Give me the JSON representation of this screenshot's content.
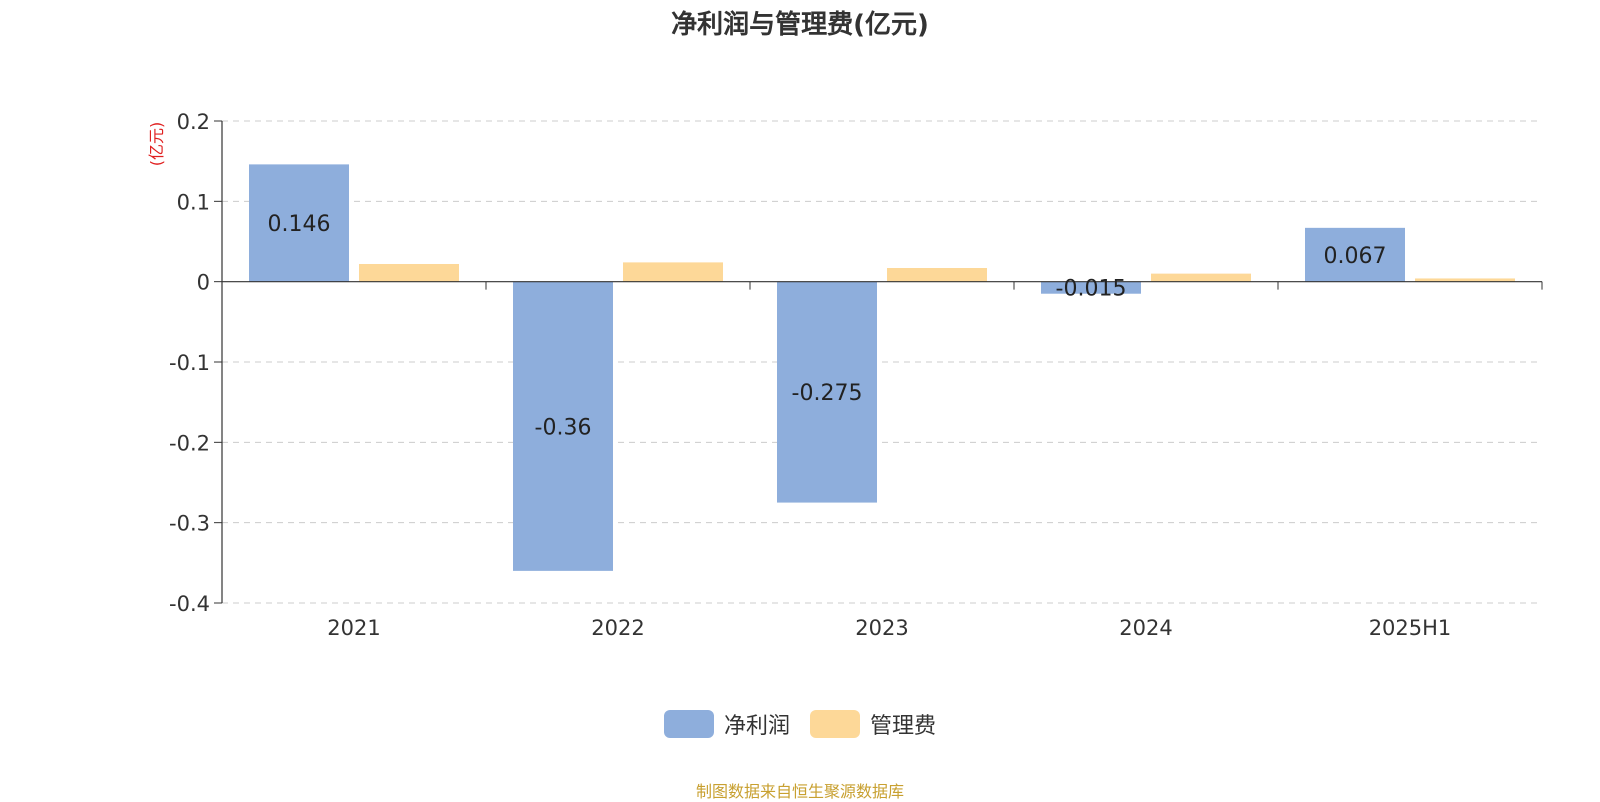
{
  "chart_data": {
    "type": "bar",
    "title": "净利润与管理费(亿元)",
    "ylabel": "(亿元)",
    "categories": [
      "2021",
      "2022",
      "2023",
      "2024",
      "2025H1"
    ],
    "series": [
      {
        "name": "净利润",
        "values": [
          0.146,
          -0.36,
          -0.275,
          -0.015,
          0.067
        ],
        "color": "#8eaedc",
        "show_labels": true
      },
      {
        "name": "管理费",
        "values": [
          0.022,
          0.024,
          0.017,
          0.01,
          0.004
        ],
        "color": "#fdd898",
        "show_labels": false
      }
    ],
    "ylim": [
      -0.4,
      0.2
    ],
    "yticks": [
      0.2,
      0.1,
      0,
      -0.1,
      -0.2,
      -0.3,
      -0.4
    ],
    "ytick_labels": [
      "0.2",
      "0.1",
      "0",
      "-0.1",
      "-0.2",
      "-0.3",
      "-0.4"
    ],
    "grid": true,
    "legend_position": "bottom"
  },
  "footer": {
    "source": "制图数据来自恒生聚源数据库"
  },
  "colors": {
    "ylabel": "#e02020",
    "axis": "#333333",
    "grid": "#cccccc"
  }
}
